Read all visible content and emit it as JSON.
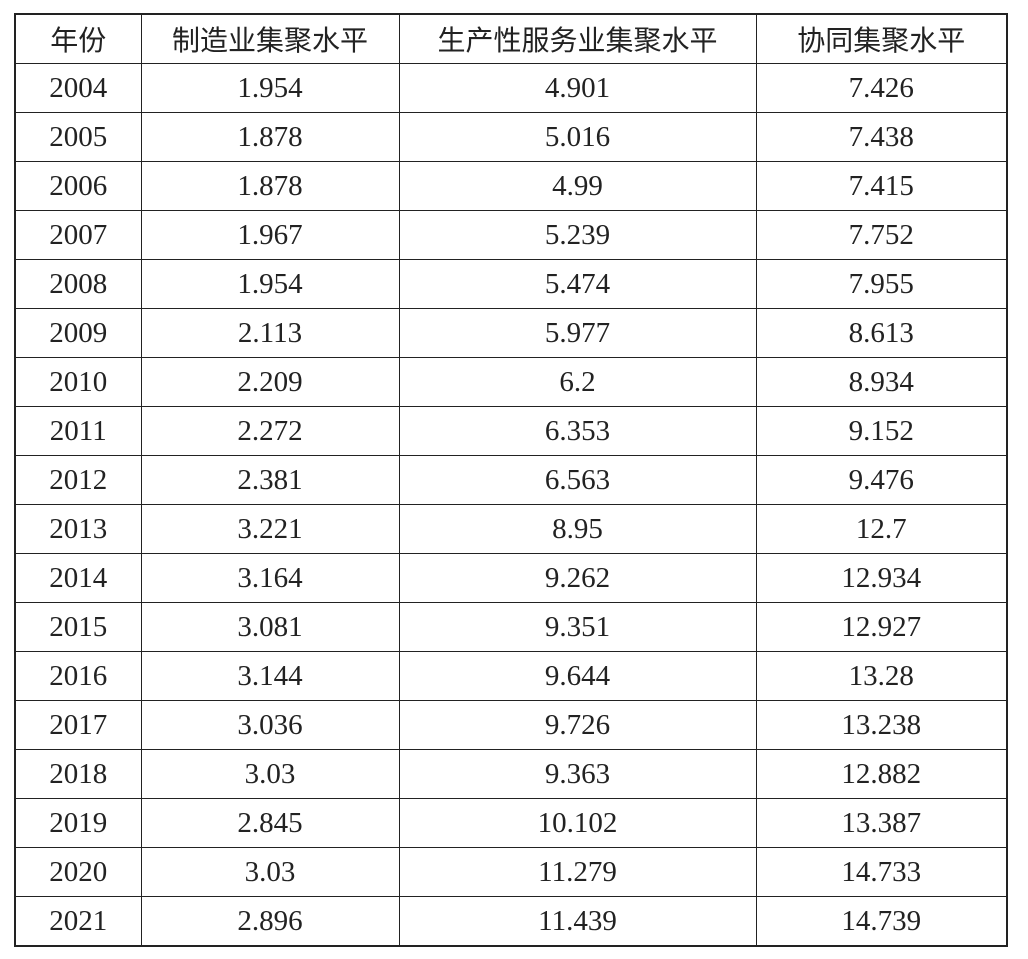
{
  "table": {
    "header": [
      "年份",
      "制造业集聚水平",
      "生产性服务业集聚水平",
      "协同集聚水平"
    ],
    "rows": [
      [
        "2004",
        "1.954",
        "4.901",
        "7.426"
      ],
      [
        "2005",
        "1.878",
        "5.016",
        "7.438"
      ],
      [
        "2006",
        "1.878",
        "4.99",
        "7.415"
      ],
      [
        "2007",
        "1.967",
        "5.239",
        "7.752"
      ],
      [
        "2008",
        "1.954",
        "5.474",
        "7.955"
      ],
      [
        "2009",
        "2.113",
        "5.977",
        "8.613"
      ],
      [
        "2010",
        "2.209",
        "6.2",
        "8.934"
      ],
      [
        "2011",
        "2.272",
        "6.353",
        "9.152"
      ],
      [
        "2012",
        "2.381",
        "6.563",
        "9.476"
      ],
      [
        "2013",
        "3.221",
        "8.95",
        "12.7"
      ],
      [
        "2014",
        "3.164",
        "9.262",
        "12.934"
      ],
      [
        "2015",
        "3.081",
        "9.351",
        "12.927"
      ],
      [
        "2016",
        "3.144",
        "9.644",
        "13.28"
      ],
      [
        "2017",
        "3.036",
        "9.726",
        "13.238"
      ],
      [
        "2018",
        "3.03",
        "9.363",
        "12.882"
      ],
      [
        "2019",
        "2.845",
        "10.102",
        "13.387"
      ],
      [
        "2020",
        "3.03",
        "11.279",
        "14.733"
      ],
      [
        "2021",
        "2.896",
        "11.439",
        "14.739"
      ]
    ]
  }
}
